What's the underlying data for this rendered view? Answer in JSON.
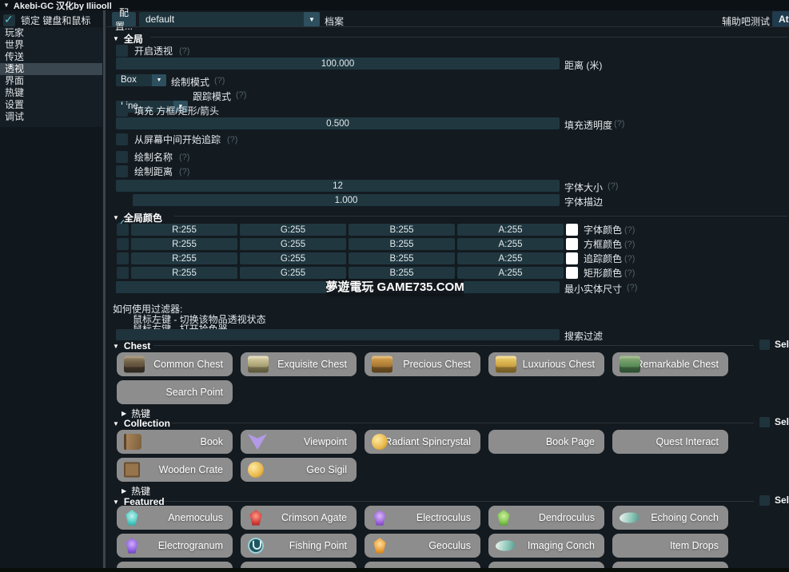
{
  "window": {
    "collapse_arrow": "▼",
    "title": "Akebi-GC 汉化by Iliiooll"
  },
  "sidebar": {
    "lock_label": "锁定 键盘和鼠标",
    "items": [
      {
        "label": "玩家",
        "selected": false
      },
      {
        "label": "世界",
        "selected": false
      },
      {
        "label": "传送",
        "selected": false
      },
      {
        "label": "透视",
        "selected": true
      },
      {
        "label": "界面",
        "selected": false
      },
      {
        "label": "热键",
        "selected": false
      },
      {
        "label": "设置",
        "selected": false
      },
      {
        "label": "调试",
        "selected": false
      }
    ]
  },
  "toolbar": {
    "config_button": "配置...",
    "profile_value": "default",
    "combo_arrow": "▼",
    "profile_label": "档案",
    "status_text": "辅助吧测试",
    "attach_button": "Attach"
  },
  "help_marker": "(?)",
  "esp": {
    "section_global": "全局",
    "enable_label": "开启透视",
    "distance": {
      "value": "100.000",
      "label": "距离 (米)"
    },
    "draw_mode": {
      "value": "Box",
      "label": "绘制模式"
    },
    "trace_mode": {
      "value": "Line",
      "label": "跟踪模式"
    },
    "fill_label": "填充 方框/矩形/箭头",
    "fill_alpha": {
      "value": "0.500",
      "label": "填充透明度"
    },
    "trace_center_label": "从屏幕中间开始追踪",
    "draw_name_label": "绘制名称",
    "draw_distance_label": "绘制距离",
    "font_size": {
      "value": "12",
      "label": "字体大小"
    },
    "font_outline": {
      "value": "1.000",
      "label": "字体描边"
    },
    "section_colors": "全局颜色",
    "color_rows": [
      {
        "r": "R:255",
        "g": "G:255",
        "b": "B:255",
        "a": "A:255",
        "swatch": "#ffffff",
        "label": "字体颜色"
      },
      {
        "r": "R:255",
        "g": "G:255",
        "b": "B:255",
        "a": "A:255",
        "swatch": "#ffffff",
        "label": "方框颜色"
      },
      {
        "r": "R:255",
        "g": "G:255",
        "b": "B:255",
        "a": "A:255",
        "swatch": "#ffffff",
        "label": "追踪颜色"
      },
      {
        "r": "R:255",
        "g": "G:255",
        "b": "B:255",
        "a": "A:255",
        "swatch": "#ffffff",
        "label": "矩形颜色"
      }
    ],
    "min_size": {
      "value": "",
      "label": "最小实体尺寸"
    }
  },
  "filter_help": {
    "line1": "如何使用过滤器:",
    "line2": "鼠标左键 - 切换该物品透视状态",
    "line3": "鼠标右键 - 打开拾色器"
  },
  "search": {
    "value": "",
    "label": "搜索过滤"
  },
  "select_label": "Select...",
  "hotkey_arrow": "▶",
  "hotkey_label": "热键",
  "sections": [
    {
      "header": "Chest",
      "items": [
        {
          "label": "Common Chest",
          "icon": "common-chest"
        },
        {
          "label": "Exquisite Chest",
          "icon": "exquisite-chest"
        },
        {
          "label": "Precious Chest",
          "icon": "precious-chest"
        },
        {
          "label": "Luxurious Chest",
          "icon": "luxurious-chest"
        },
        {
          "label": "Remarkable Chest",
          "icon": "remarkable-chest"
        },
        {
          "label": "Search Point",
          "icon": null
        }
      ]
    },
    {
      "header": "Collection",
      "items": [
        {
          "label": "Book",
          "icon": "book"
        },
        {
          "label": "Viewpoint",
          "icon": "viewpoint"
        },
        {
          "label": "Radiant Spincrystal",
          "icon": "radiant-spincrystal"
        },
        {
          "label": "Book Page",
          "icon": null
        },
        {
          "label": "Quest Interact",
          "icon": null
        },
        {
          "label": "Wooden Crate",
          "icon": "wooden-crate"
        },
        {
          "label": "Geo Sigil",
          "icon": "geo-sigil"
        }
      ]
    },
    {
      "header": "Featured",
      "items": [
        {
          "label": "Anemoculus",
          "icon": "anemoculus"
        },
        {
          "label": "Crimson Agate",
          "icon": "crimson-agate"
        },
        {
          "label": "Electroculus",
          "icon": "electroculus"
        },
        {
          "label": "Dendroculus",
          "icon": "dendroculus"
        },
        {
          "label": "Echoing Conch",
          "icon": "echoing-conch"
        },
        {
          "label": "Electrogranum",
          "icon": "electrogranum"
        },
        {
          "label": "Fishing Point",
          "icon": "fishing-point"
        },
        {
          "label": "Geoculus",
          "icon": "geoculus"
        },
        {
          "label": "Imaging Conch",
          "icon": "imaging-conch"
        },
        {
          "label": "Item Drops",
          "icon": null
        }
      ]
    }
  ],
  "watermark": "夢遊電玩 GAME735.COM",
  "colors": {
    "accent_check": "#5fc3d6",
    "frame_teal": "#203740",
    "button_gray": "#8d8d8d"
  }
}
